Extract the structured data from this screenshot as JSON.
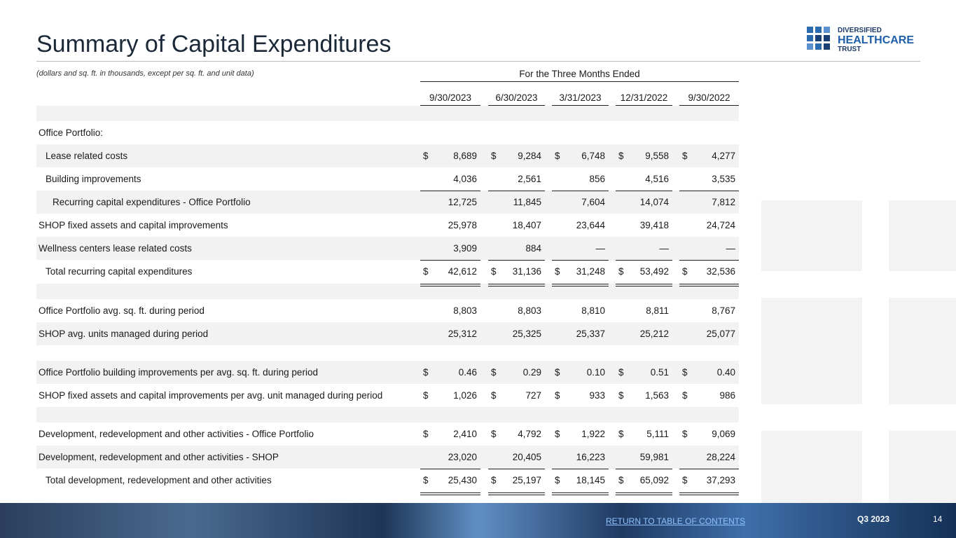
{
  "header": {
    "title": "Summary of Capital Expenditures",
    "logo": [
      "DIVERSIFIED",
      "HEALTHCARE",
      "TRUST"
    ]
  },
  "table": {
    "note": "(dollars and sq. ft. in thousands, except per sq. ft. and unit data)",
    "period_header": "For the Three Months Ended",
    "columns": [
      "9/30/2023",
      "6/30/2023",
      "3/31/2023",
      "12/31/2022",
      "9/30/2022"
    ],
    "rows": [
      {
        "label": "Office Portfolio:"
      },
      {
        "label": "Lease related costs",
        "prefix": "$",
        "cells": [
          "8,689",
          "9,284",
          "6,748",
          "9,558",
          "4,277"
        ]
      },
      {
        "label": "Building improvements",
        "cells": [
          "4,036",
          "2,561",
          "856",
          "4,516",
          "3,535"
        ]
      },
      {
        "label": "Recurring capital expenditures - Office Portfolio",
        "cells": [
          "12,725",
          "11,845",
          "7,604",
          "14,074",
          "7,812"
        ]
      },
      {
        "label": "SHOP fixed assets and capital improvements",
        "cells": [
          "25,978",
          "18,407",
          "23,644",
          "39,418",
          "24,724"
        ]
      },
      {
        "label": "Wellness centers lease related costs",
        "cells": [
          "3,909",
          "884",
          "—",
          "—",
          "—"
        ]
      },
      {
        "label": "Total recurring capital expenditures",
        "prefix": "$",
        "cells": [
          "42,612",
          "31,136",
          "31,248",
          "53,492",
          "32,536"
        ]
      },
      {
        "label": "Office Portfolio avg. sq. ft. during period",
        "cells": [
          "8,803",
          "8,803",
          "8,810",
          "8,811",
          "8,767"
        ]
      },
      {
        "label": "SHOP avg. units managed during period",
        "cells": [
          "25,312",
          "25,325",
          "25,337",
          "25,212",
          "25,077"
        ]
      },
      {
        "label": "Office Portfolio building improvements per avg. sq. ft. during period",
        "prefix": "$",
        "cells": [
          "0.46",
          "0.29",
          "0.10",
          "0.51",
          "0.40"
        ]
      },
      {
        "label": "SHOP fixed assets and capital improvements per avg. unit managed during period",
        "prefix": "$",
        "cells": [
          "1,026",
          "727",
          "933",
          "1,563",
          "986"
        ]
      },
      {
        "label": "Development, redevelopment and other activities - Office Portfolio",
        "prefix": "$",
        "cells": [
          "2,410",
          "4,792",
          "1,922",
          "5,111",
          "9,069"
        ]
      },
      {
        "label": "Development, redevelopment and other activities - SHOP",
        "cells": [
          "23,020",
          "20,405",
          "16,223",
          "59,981",
          "28,224"
        ]
      },
      {
        "label": "Total development, redevelopment and other activities",
        "prefix": "$",
        "cells": [
          "25,430",
          "25,197",
          "18,145",
          "65,092",
          "37,293"
        ]
      }
    ]
  },
  "footer": {
    "link": "RETURN TO TABLE OF CONTENTS",
    "quarter": "Q3 2023",
    "page": "14"
  }
}
